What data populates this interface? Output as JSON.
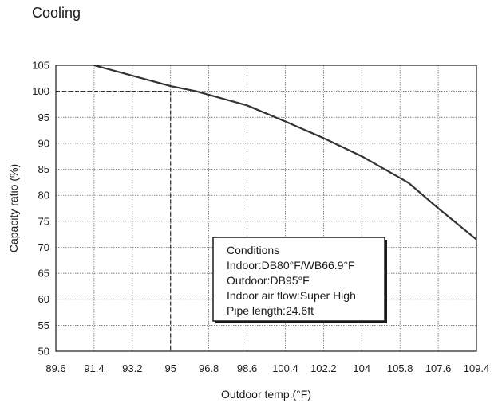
{
  "chart_data": {
    "type": "line",
    "title": "Cooling",
    "xlabel": "Outdoor temp.(°F)",
    "ylabel": "Capacity ratio (%)",
    "x_ticks": [
      89.6,
      91.4,
      93.2,
      95,
      96.8,
      98.6,
      100.4,
      102.2,
      104,
      105.8,
      107.6,
      109.4
    ],
    "y_ticks": [
      50,
      55,
      60,
      65,
      70,
      75,
      80,
      85,
      90,
      95,
      100,
      105
    ],
    "xlim": [
      89.6,
      109.4
    ],
    "ylim": [
      50,
      105
    ],
    "grid": true,
    "series": [
      {
        "x": [
          91.4,
          95,
          96.2,
          98.6,
          100.4,
          102.2,
          104,
          106.2,
          107.6,
          109.4
        ],
        "y": [
          105,
          101,
          100,
          97.3,
          94.2,
          91,
          87.5,
          82.4,
          77.5,
          71.5
        ]
      }
    ],
    "reference": {
      "x": 95,
      "y": 100
    },
    "annotation": {
      "lines": [
        "Conditions",
        "Indoor:DB80°F/WB66.9°F",
        "Outdoor:DB95°F",
        "Indoor air flow:Super High",
        "Pipe length:24.6ft"
      ]
    }
  }
}
